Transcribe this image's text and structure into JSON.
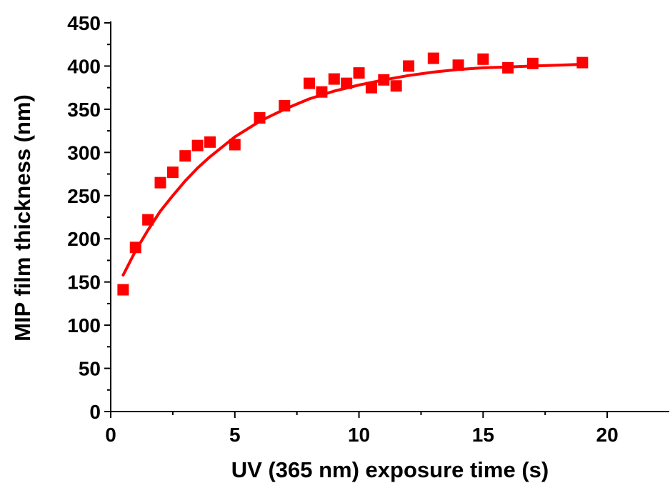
{
  "chart_data": {
    "type": "scatter",
    "xlabel": "UV (365 nm) exposure time (s)",
    "ylabel": "MIP film thickness (nm)",
    "xlim": [
      0,
      22.5
    ],
    "ylim": [
      0,
      450
    ],
    "x_ticks": [
      0,
      5,
      10,
      15,
      20
    ],
    "x_tick_labels": [
      "0",
      "5",
      "10",
      "15",
      "20"
    ],
    "y_ticks": [
      0,
      50,
      100,
      150,
      200,
      250,
      300,
      350,
      400,
      450
    ],
    "y_tick_labels": [
      "0",
      "50",
      "100",
      "150",
      "200",
      "250",
      "300",
      "350",
      "400",
      "450"
    ],
    "grid": false,
    "series": [
      {
        "kind": "markers",
        "marker": "square",
        "color": "#ff0000",
        "x": [
          0.5,
          1.0,
          1.5,
          2.0,
          2.5,
          3.0,
          3.5,
          4.0,
          5.0,
          6.0,
          7.0,
          8.0,
          8.5,
          9.0,
          9.5,
          10.0,
          10.5,
          11.0,
          11.5,
          12.0,
          13.0,
          14.0,
          15.0,
          16.0,
          17.0,
          19.0
        ],
        "y": [
          141,
          190,
          222,
          265,
          277,
          296,
          308,
          312,
          309,
          340,
          354,
          380,
          370,
          385,
          380,
          392,
          375,
          384,
          377,
          400,
          409,
          401,
          408,
          398,
          403,
          404
        ]
      },
      {
        "kind": "fit-line",
        "color": "#ff0000",
        "x": [
          0.5,
          1.0,
          1.5,
          2.0,
          2.5,
          3.0,
          3.5,
          4.0,
          5.0,
          6.0,
          7.0,
          8.0,
          9.0,
          10.0,
          11.0,
          12.0,
          13.0,
          14.0,
          15.0,
          16.0,
          17.0,
          18.0,
          19.0
        ],
        "y": [
          158,
          186,
          210,
          232,
          250,
          267,
          282,
          295,
          318,
          336,
          350,
          362,
          371,
          378,
          384,
          389,
          393,
          396,
          398,
          399,
          400,
          401,
          402
        ]
      }
    ]
  }
}
